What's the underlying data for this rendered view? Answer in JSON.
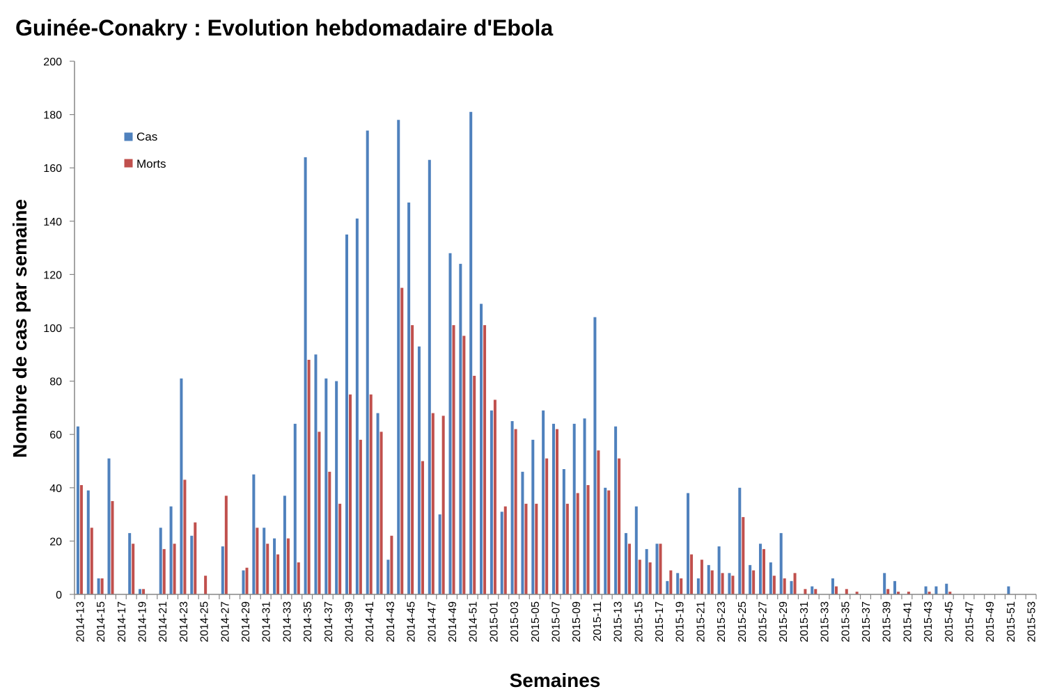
{
  "chart_data": {
    "type": "bar",
    "title": "Guinée-Conakry : Evolution hebdomadaire d'Ebola",
    "xlabel": "Semaines",
    "ylabel": "Nombre de cas par semaine",
    "ylim": [
      0,
      200
    ],
    "yticks": [
      0,
      20,
      40,
      60,
      80,
      100,
      120,
      140,
      160,
      180,
      200
    ],
    "grid": false,
    "legend_position": "top-left",
    "categories": [
      "2014-13",
      "2014-14",
      "2014-15",
      "2014-16",
      "2014-17",
      "2014-18",
      "2014-19",
      "2014-20",
      "2014-21",
      "2014-22",
      "2014-23",
      "2014-24",
      "2014-25",
      "2014-26",
      "2014-27",
      "2014-28",
      "2014-29",
      "2014-30",
      "2014-31",
      "2014-32",
      "2014-33",
      "2014-34",
      "2014-35",
      "2014-36",
      "2014-37",
      "2014-38",
      "2014-39",
      "2014-40",
      "2014-41",
      "2014-42",
      "2014-43",
      "2014-44",
      "2014-45",
      "2014-46",
      "2014-47",
      "2014-48",
      "2014-49",
      "2014-50",
      "2014-51",
      "2014-52",
      "2015-01",
      "2015-02",
      "2015-03",
      "2015-04",
      "2015-05",
      "2015-06",
      "2015-07",
      "2015-08",
      "2015-09",
      "2015-10",
      "2015-11",
      "2015-12",
      "2015-13",
      "2015-14",
      "2015-15",
      "2015-16",
      "2015-17",
      "2015-18",
      "2015-19",
      "2015-20",
      "2015-21",
      "2015-22",
      "2015-23",
      "2015-24",
      "2015-25",
      "2015-26",
      "2015-27",
      "2015-28",
      "2015-29",
      "2015-30",
      "2015-31",
      "2015-32",
      "2015-33",
      "2015-34",
      "2015-35",
      "2015-36",
      "2015-37",
      "2015-38",
      "2015-39",
      "2015-40",
      "2015-41",
      "2015-42",
      "2015-43",
      "2015-44",
      "2015-45",
      "2015-46",
      "2015-47",
      "2015-48",
      "2015-49",
      "2015-50",
      "2015-51",
      "2015-52",
      "2015-53"
    ],
    "tick_labels": [
      "2014-13",
      "2014-15",
      "2014-17",
      "2014-19",
      "2014-21",
      "2014-23",
      "2014-25",
      "2014-27",
      "2014-29",
      "2014-31",
      "2014-33",
      "2014-35",
      "2014-37",
      "2014-39",
      "2014-41",
      "2014-43",
      "2014-45",
      "2014-47",
      "2014-49",
      "2014-51",
      "2015-01",
      "2015-03",
      "2015-05",
      "2015-07",
      "2015-09",
      "2015-11",
      "2015-13",
      "2015-15",
      "2015-17",
      "2015-19",
      "2015-21",
      "2015-23",
      "2015-25",
      "2015-27",
      "2015-29",
      "2015-31",
      "2015-33",
      "2015-35",
      "2015-37",
      "2015-39",
      "2015-41",
      "2015-43",
      "2015-45",
      "2015-47",
      "2015-49",
      "2015-51",
      "2015-53"
    ],
    "series": [
      {
        "name": "Cas",
        "color": "#4F81BD",
        "values": [
          63,
          39,
          6,
          51,
          0,
          23,
          2,
          0,
          25,
          33,
          81,
          22,
          0,
          0,
          18,
          0,
          9,
          45,
          25,
          21,
          37,
          64,
          164,
          90,
          81,
          80,
          135,
          141,
          174,
          68,
          13,
          178,
          147,
          93,
          163,
          30,
          128,
          124,
          181,
          109,
          69,
          31,
          65,
          46,
          58,
          69,
          64,
          47,
          64,
          66,
          104,
          40,
          63,
          23,
          33,
          17,
          19,
          5,
          8,
          38,
          6,
          11,
          18,
          8,
          40,
          11,
          19,
          12,
          23,
          5,
          0,
          3,
          0,
          6,
          0,
          0,
          0,
          0,
          8,
          5,
          0,
          0,
          3,
          3,
          4,
          0,
          0,
          0,
          0,
          0,
          3,
          0,
          0
        ]
      },
      {
        "name": "Morts",
        "color": "#C0504D",
        "values": [
          41,
          25,
          6,
          35,
          0,
          19,
          2,
          0,
          17,
          19,
          43,
          27,
          7,
          0,
          37,
          0,
          10,
          25,
          19,
          15,
          21,
          12,
          88,
          61,
          46,
          34,
          75,
          58,
          75,
          61,
          22,
          115,
          101,
          50,
          68,
          67,
          101,
          97,
          82,
          101,
          73,
          33,
          62,
          34,
          34,
          51,
          62,
          34,
          38,
          41,
          54,
          39,
          51,
          19,
          13,
          12,
          19,
          9,
          6,
          15,
          13,
          9,
          8,
          7,
          29,
          9,
          17,
          7,
          6,
          8,
          2,
          2,
          0,
          3,
          2,
          1,
          0,
          0,
          2,
          1,
          1,
          0,
          1,
          0,
          1,
          0,
          0,
          0,
          0,
          0,
          0,
          0,
          0
        ]
      }
    ]
  }
}
